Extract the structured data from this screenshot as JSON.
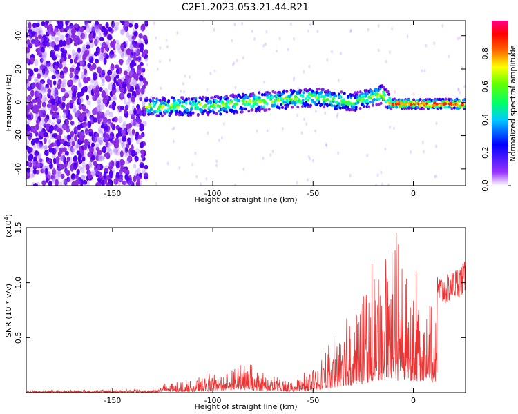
{
  "title": "C2E1.2023.053.21.44.R21",
  "chart_data": [
    {
      "type": "heatmap",
      "xlabel": "Height of straight line (km)",
      "ylabel": "Frequency (Hz)",
      "xlim": [
        -193,
        26
      ],
      "ylim": [
        -50,
        49
      ],
      "xticks": [
        -150,
        -100,
        -50,
        0
      ],
      "yticks": [
        -40,
        -20,
        0,
        20,
        40
      ],
      "colorbar": {
        "label": "Normalized spectral amplitude",
        "range": [
          0,
          1
        ],
        "ticks": [
          "0.0",
          "0.2",
          "0.4",
          "0.6",
          "0.8"
        ],
        "tick_values": [
          0,
          0.2,
          0.4,
          0.6,
          0.8
        ]
      },
      "ridge": {
        "description_points": [
          {
            "x": -135,
            "y": -3
          },
          {
            "x": -100,
            "y": -2
          },
          {
            "x": -70,
            "y": 1
          },
          {
            "x": -50,
            "y": 3
          },
          {
            "x": -30,
            "y": 0
          },
          {
            "x": -15,
            "y": 5
          },
          {
            "x": -12,
            "y": -1
          },
          {
            "x": 25,
            "y": -1
          }
        ]
      }
    },
    {
      "type": "line",
      "xlabel": "Height of straight line (km)",
      "ylabel": "SNR (10 * v/v)",
      "multiplier": "(x10",
      "multiplier_exp": "4",
      "multiplier_close": ")",
      "xlim": [
        -193,
        26
      ],
      "ylim": [
        0,
        1.5
      ],
      "xticks": [
        -150,
        -100,
        -50,
        0
      ],
      "yticks": [
        "0.5",
        "1.0",
        "1.5"
      ],
      "ytick_values": [
        0.5,
        1.0,
        1.5
      ],
      "series": [
        {
          "color": "#ee3333",
          "envelope": [
            {
              "x": -193,
              "y": 0.02
            },
            {
              "x": -130,
              "y": 0.03
            },
            {
              "x": -125,
              "y": 0.08
            },
            {
              "x": -110,
              "y": 0.12
            },
            {
              "x": -95,
              "y": 0.2
            },
            {
              "x": -85,
              "y": 0.3
            },
            {
              "x": -75,
              "y": 0.18
            },
            {
              "x": -60,
              "y": 0.12
            },
            {
              "x": -50,
              "y": 0.2
            },
            {
              "x": -40,
              "y": 0.5
            },
            {
              "x": -30,
              "y": 0.8
            },
            {
              "x": -20,
              "y": 1.1
            },
            {
              "x": -12,
              "y": 1.45
            },
            {
              "x": 0,
              "y": 1.2
            },
            {
              "x": 15,
              "y": 1.05
            },
            {
              "x": 26,
              "y": 1.2
            }
          ]
        }
      ]
    }
  ]
}
